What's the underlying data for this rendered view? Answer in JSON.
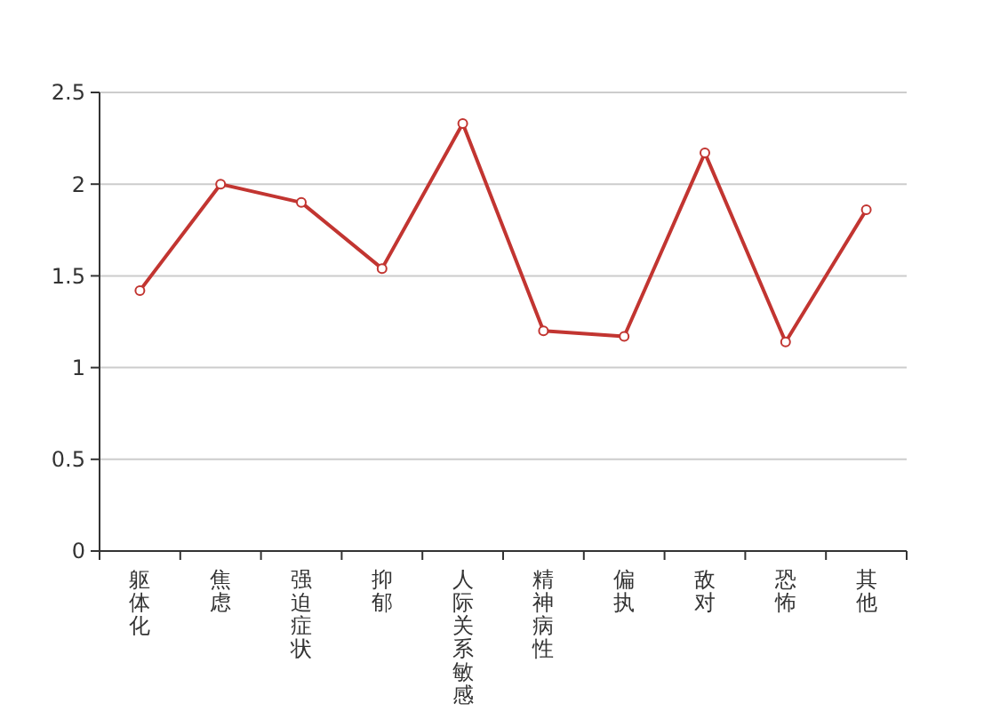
{
  "chart_data": {
    "type": "line",
    "categories": [
      "躯体化",
      "焦虑",
      "强迫症状",
      "抑郁",
      "人际关系敏感",
      "精神病性",
      "偏执",
      "敌对",
      "恐怖",
      "其他"
    ],
    "series": [
      {
        "color": "#c23531",
        "values": [
          1.42,
          2.0,
          1.9,
          1.54,
          2.33,
          1.2,
          1.17,
          2.17,
          1.14,
          1.86
        ]
      }
    ],
    "ylim": [
      0,
      2.5
    ],
    "yticks": [
      0,
      {
        "value": 0.5,
        "label": "0.5"
      },
      1,
      {
        "value": 1.5,
        "label": "1.5"
      },
      2,
      {
        "value": 2.5,
        "label": "2.5"
      }
    ],
    "grid": "y",
    "marker": "circle",
    "line_style": "solid"
  }
}
